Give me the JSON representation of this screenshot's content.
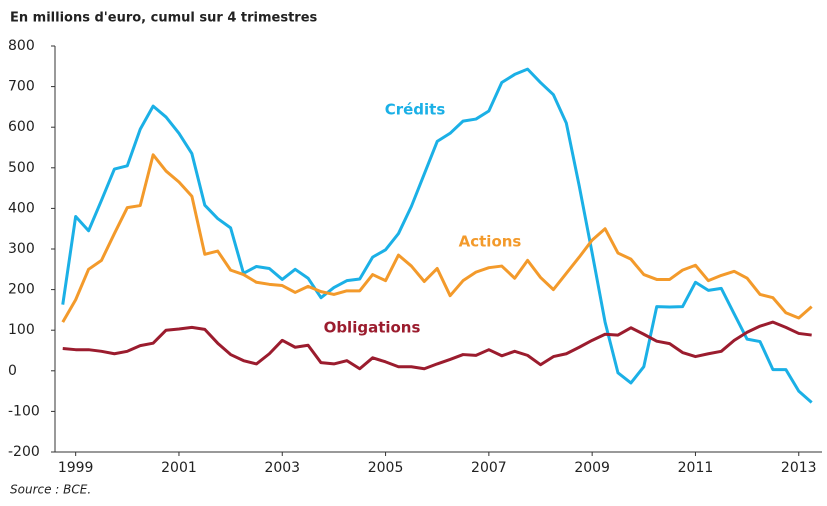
{
  "chart_data": {
    "type": "line",
    "title": "En millions d'euro, cumul sur 4 trimestres",
    "source": "Source : BCE.",
    "x": [
      1998.75,
      1999,
      1999.25,
      1999.5,
      1999.75,
      2000,
      2000.25,
      2000.5,
      2000.75,
      2001,
      2001.25,
      2001.5,
      2001.75,
      2002,
      2002.25,
      2002.5,
      2002.75,
      2003,
      2003.25,
      2003.5,
      2003.75,
      2004,
      2004.25,
      2004.5,
      2004.75,
      2005,
      2005.25,
      2005.5,
      2005.75,
      2006,
      2006.25,
      2006.5,
      2006.75,
      2007,
      2007.25,
      2007.5,
      2007.75,
      2008,
      2008.25,
      2008.5,
      2008.75,
      2009,
      2009.25,
      2009.5,
      2009.75,
      2010,
      2010.25,
      2010.5,
      2010.75,
      2011,
      2011.25,
      2011.5,
      2011.75,
      2012,
      2012.25,
      2012.5,
      2012.75,
      2013,
      2013.25
    ],
    "series": [
      {
        "name": "Crédits",
        "color": "#1bb0e6",
        "values": [
          163,
          380,
          345,
          420,
          497,
          505,
          595,
          652,
          625,
          585,
          535,
          408,
          375,
          352,
          240,
          257,
          252,
          225,
          250,
          228,
          180,
          205,
          222,
          226,
          280,
          298,
          338,
          405,
          485,
          565,
          585,
          615,
          620,
          640,
          710,
          730,
          743,
          710,
          680,
          610,
          455,
          290,
          120,
          -5,
          -30,
          10,
          158,
          157,
          158,
          218,
          198,
          203,
          140,
          78,
          72,
          3,
          3,
          -50,
          -78
        ]
      },
      {
        "name": "Actions",
        "color": "#f39a2b",
        "values": [
          120,
          175,
          250,
          272,
          338,
          402,
          407,
          532,
          492,
          465,
          430,
          287,
          295,
          248,
          237,
          218,
          213,
          210,
          193,
          208,
          195,
          188,
          197,
          197,
          237,
          222,
          285,
          258,
          220,
          252,
          185,
          222,
          243,
          254,
          258,
          228,
          272,
          230,
          200,
          240,
          280,
          322,
          350,
          290,
          275,
          237,
          225,
          225,
          248,
          260,
          222,
          235,
          245,
          228,
          188,
          180,
          143,
          130,
          158
        ]
      },
      {
        "name": "Obligations",
        "color": "#9b1c2e",
        "values": [
          55,
          52,
          52,
          48,
          42,
          48,
          62,
          68,
          100,
          103,
          107,
          102,
          68,
          40,
          25,
          17,
          42,
          75,
          58,
          63,
          20,
          17,
          25,
          5,
          32,
          22,
          10,
          10,
          5,
          17,
          28,
          40,
          38,
          52,
          37,
          48,
          38,
          15,
          35,
          42,
          58,
          75,
          90,
          88,
          106,
          90,
          73,
          67,
          45,
          35,
          42,
          48,
          75,
          95,
          110,
          120,
          107,
          92,
          88
        ]
      }
    ],
    "xlim": [
      1998.6,
      2013.45
    ],
    "xticks": [
      1999,
      2001,
      2003,
      2005,
      2007,
      2009,
      2011,
      2013
    ],
    "ylim": [
      -200,
      800
    ],
    "yticks": [
      -200,
      -100,
      0,
      100,
      200,
      300,
      400,
      500,
      600,
      700,
      800
    ]
  }
}
